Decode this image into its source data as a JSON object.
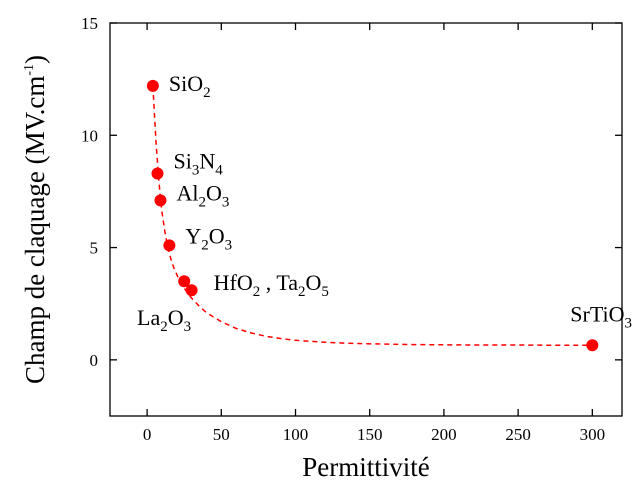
{
  "chart_data": {
    "type": "scatter",
    "title": "",
    "xlabel": "Permittivité",
    "ylabel": {
      "prefix": "Champ de claquage (MV.cm",
      "sup": "-1",
      "suffix": ")"
    },
    "xlim": [
      -25,
      320
    ],
    "ylim": [
      -2.5,
      15
    ],
    "xticks": [
      0,
      50,
      100,
      150,
      200,
      250,
      300
    ],
    "yticks": [
      0,
      5,
      10,
      15
    ],
    "grid": false,
    "marker_color": "#ff0000",
    "fit_line_color": "#ff0000",
    "fit_line_style": "dashed",
    "points": [
      {
        "x": 3.9,
        "y": 12.2,
        "label": [
          {
            "t": "SiO"
          },
          {
            "t": "2",
            "sub": true
          }
        ]
      },
      {
        "x": 7,
        "y": 8.3,
        "label": [
          {
            "t": "Si"
          },
          {
            "t": "3",
            "sub": true
          },
          {
            "t": "N"
          },
          {
            "t": "4",
            "sub": true
          }
        ]
      },
      {
        "x": 9,
        "y": 7.1,
        "label": [
          {
            "t": "Al"
          },
          {
            "t": "2",
            "sub": true
          },
          {
            "t": "O"
          },
          {
            "t": "3",
            "sub": true
          }
        ]
      },
      {
        "x": 15,
        "y": 5.1,
        "label": [
          {
            "t": "Y"
          },
          {
            "t": "2",
            "sub": true
          },
          {
            "t": "O"
          },
          {
            "t": "3",
            "sub": true
          }
        ]
      },
      {
        "x": 25,
        "y": 3.5,
        "label": [
          {
            "t": "La"
          },
          {
            "t": "2",
            "sub": true
          },
          {
            "t": "O"
          },
          {
            "t": "3",
            "sub": true
          }
        ]
      },
      {
        "x": 30,
        "y": 3.1,
        "label": [
          {
            "t": "HfO"
          },
          {
            "t": "2",
            "sub": true
          },
          {
            "t": " , Ta"
          },
          {
            "t": "2",
            "sub": true
          },
          {
            "t": "O"
          },
          {
            "t": "5",
            "sub": true
          }
        ]
      },
      {
        "x": 300,
        "y": 0.65,
        "label": [
          {
            "t": "SrTiO"
          },
          {
            "t": "3",
            "sub": true
          }
        ]
      }
    ],
    "fit_curve": {
      "x": [
        3.9,
        5,
        6,
        7,
        8,
        9,
        10,
        12,
        14,
        16,
        18,
        20,
        22,
        25,
        28,
        30,
        35,
        40,
        45,
        50,
        60,
        70,
        80,
        90,
        100,
        120,
        140,
        160,
        180,
        200,
        220,
        250,
        280,
        300
      ],
      "y": [
        12.2,
        10.9,
        9.7,
        8.8,
        7.9,
        7.2,
        6.6,
        5.7,
        5.0,
        4.5,
        4.1,
        3.8,
        3.5,
        3.2,
        2.9,
        2.75,
        2.4,
        2.1,
        1.9,
        1.7,
        1.4,
        1.2,
        1.05,
        0.95,
        0.87,
        0.78,
        0.73,
        0.7,
        0.68,
        0.67,
        0.66,
        0.66,
        0.65,
        0.65
      ]
    }
  }
}
